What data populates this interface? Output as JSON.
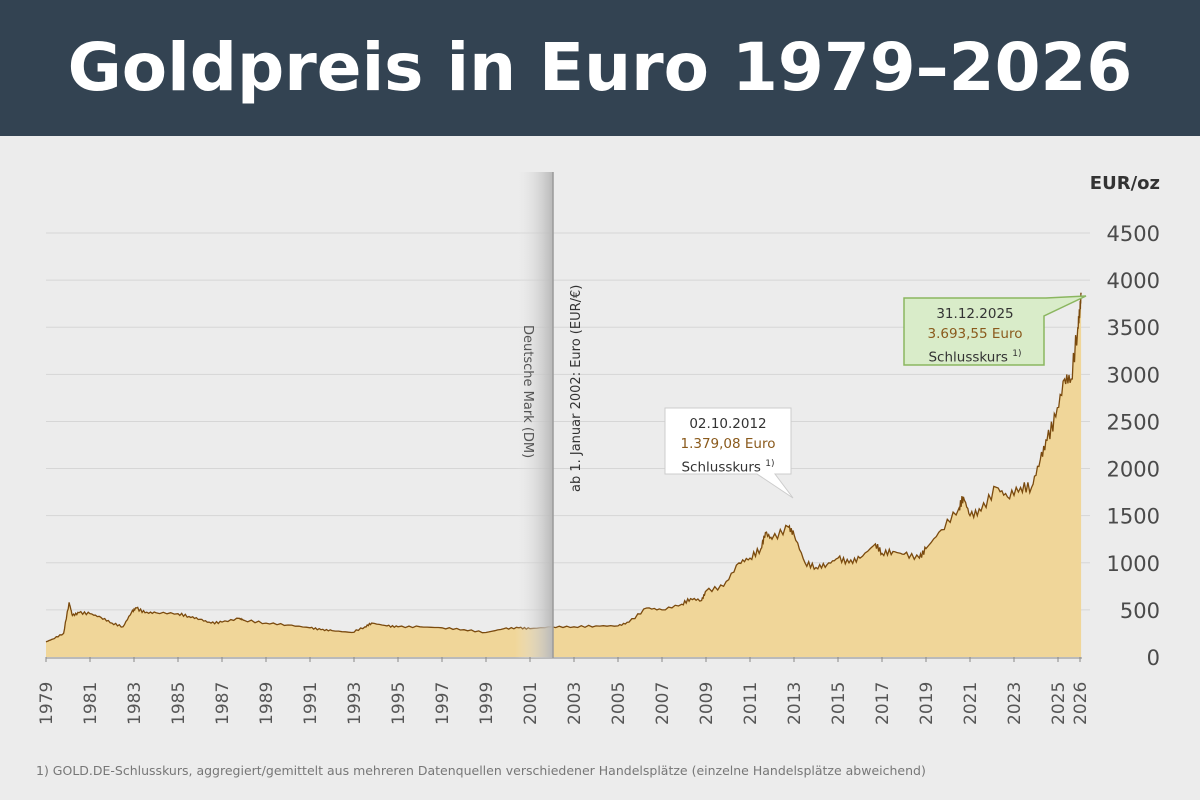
{
  "header": {
    "title": "Goldpreis in Euro 1979–2026"
  },
  "footnote": "1) GOLD.DE-Schlusskurs, aggregiert/gemittelt aus mehreren Datenquellen verschiedener Handelsplätze (einzelne Handelsplätze abweichend)",
  "annotations": {
    "dm_label": "Deutsche Mark (DM)",
    "euro_label": "ab 1. Januar 2002: Euro (EUR/€)",
    "point_2012": {
      "date": "02.10.2012",
      "value": "1.379,08 Euro",
      "label": "Schlusskurs",
      "note": "1)"
    },
    "point_2025": {
      "date": "31.12.2025",
      "value": "3.693,55 Euro",
      "label": "Schlusskurs",
      "note": "1)"
    }
  },
  "chart_data": {
    "type": "area",
    "title": "Goldpreis in Euro 1979–2026",
    "ylabel": "EUR/oz",
    "xlabel": "",
    "xlim": [
      1979,
      2026
    ],
    "ylim": [
      0,
      4500
    ],
    "yticks": [
      0,
      500,
      1000,
      1500,
      2000,
      2500,
      3000,
      3500,
      4000,
      4500
    ],
    "xticks": [
      "1979",
      "1981",
      "1983",
      "1985",
      "1987",
      "1989",
      "1991",
      "1993",
      "1995",
      "1997",
      "1999",
      "2001",
      "2003",
      "2005",
      "2007",
      "2009",
      "2011",
      "2013",
      "2015",
      "2017",
      "2019",
      "2021",
      "2023",
      "2025",
      "2026"
    ],
    "grid": true,
    "colors": {
      "fill": "#f0d699",
      "line": "#7a4a0e",
      "grid": "#d6d6d6"
    },
    "x": [
      1979.0,
      1979.3,
      1979.8,
      1980.05,
      1980.2,
      1980.5,
      1981,
      1981.5,
      1982,
      1982.5,
      1982.9,
      1983.1,
      1983.5,
      1984,
      1985,
      1985.5,
      1986,
      1986.5,
      1987,
      1987.8,
      1988,
      1989,
      1990,
      1991,
      1991.5,
      1992,
      1992.9,
      1993.5,
      1993.8,
      1994.5,
      1995,
      1996,
      1997,
      1998,
      1999,
      1999.8,
      2000.5,
      2001,
      2002,
      2003,
      2004,
      2005,
      2005.5,
      2006.3,
      2007,
      2007.9,
      2008.3,
      2008.8,
      2009,
      2009.8,
      2010.5,
      2011,
      2011.5,
      2011.7,
      2012,
      2012.75,
      2013,
      2013.5,
      2014,
      2014.5,
      2015,
      2015.5,
      2016,
      2016.7,
      2017,
      2017.5,
      2018,
      2018.7,
      2019,
      2019.7,
      2020.5,
      2020.7,
      2021,
      2021.5,
      2022.2,
      2022.7,
      2023.3,
      2023.8,
      2024.2,
      2024.5,
      2024.9,
      2025.3,
      2025.6,
      2025.9,
      2026.0,
      2026.05
    ],
    "y": [
      160,
      190,
      250,
      580,
      440,
      470,
      460,
      420,
      360,
      320,
      480,
      520,
      470,
      470,
      460,
      430,
      400,
      360,
      370,
      410,
      390,
      360,
      340,
      310,
      290,
      280,
      260,
      320,
      360,
      330,
      320,
      320,
      310,
      290,
      260,
      300,
      310,
      300,
      320,
      320,
      330,
      330,
      370,
      520,
      500,
      560,
      620,
      600,
      700,
      750,
      1000,
      1050,
      1150,
      1320,
      1250,
      1379,
      1300,
      1000,
      950,
      980,
      1050,
      1000,
      1050,
      1200,
      1100,
      1120,
      1090,
      1050,
      1150,
      1350,
      1580,
      1700,
      1500,
      1550,
      1800,
      1700,
      1800,
      1800,
      2100,
      2300,
      2550,
      2950,
      2950,
      3500,
      3694,
      3850
    ]
  }
}
